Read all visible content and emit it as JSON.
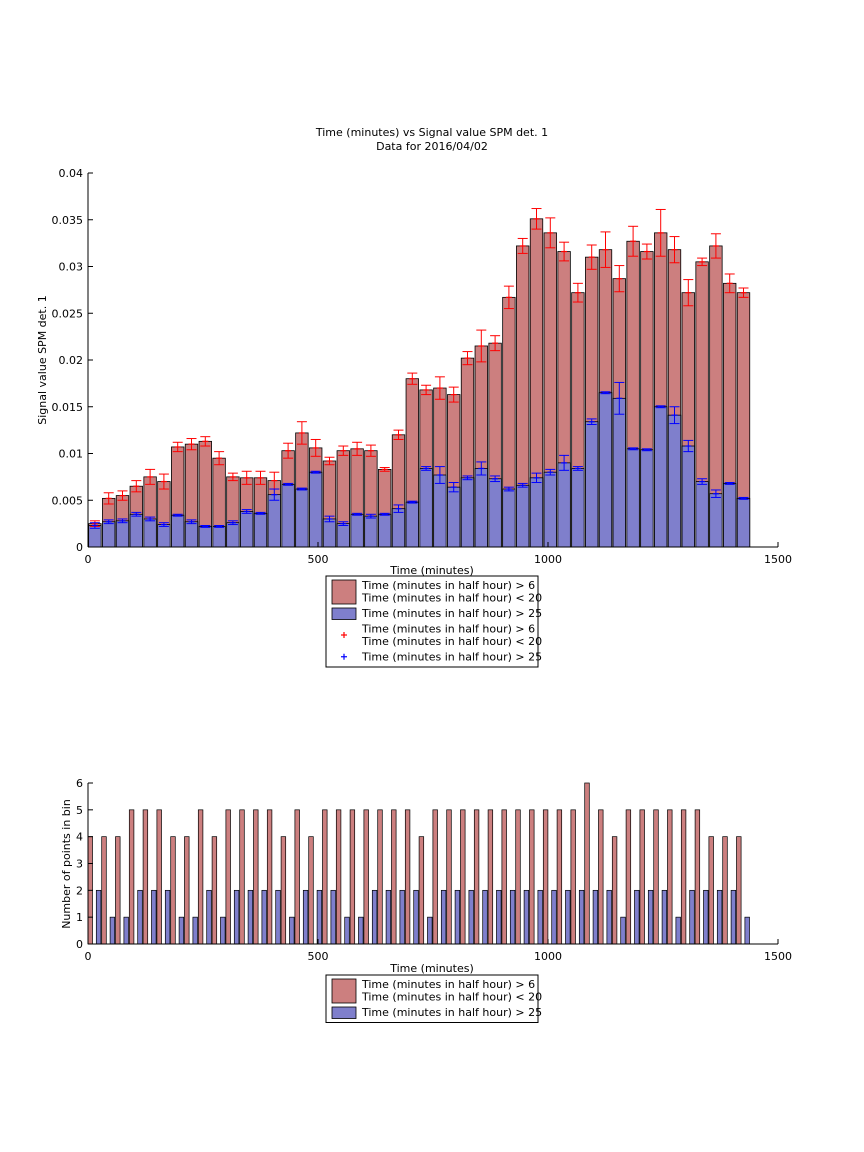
{
  "chart_data": [
    {
      "type": "bar",
      "title": "Time (minutes) vs Signal value SPM det. 1",
      "subtitle": "Data for 2016/04/02",
      "xlabel": "Time (minutes)",
      "ylabel": "Signal value SPM det. 1",
      "xlim": [
        0,
        1500
      ],
      "ylim": [
        0,
        0.04
      ],
      "xticks": [
        "0",
        "500",
        "1000",
        "1500"
      ],
      "yticks": [
        "0",
        "0.005",
        "0.01",
        "0.015",
        "0.02",
        "0.025",
        "0.03",
        "0.035",
        "0.04"
      ],
      "grid": false,
      "legend_position": "below",
      "x": [
        15,
        45,
        75,
        105,
        135,
        165,
        195,
        225,
        255,
        285,
        315,
        345,
        375,
        405,
        435,
        465,
        495,
        525,
        555,
        585,
        615,
        645,
        675,
        705,
        735,
        765,
        795,
        825,
        855,
        885,
        915,
        945,
        975,
        1005,
        1035,
        1065,
        1095,
        1125,
        1155,
        1185,
        1215,
        1245,
        1275,
        1305,
        1335,
        1365,
        1395,
        1425
      ],
      "series": [
        {
          "name": "Time (minutes in half hour) > 6\nTime (minutes in half hour) < 20",
          "color": "#cc7f7f",
          "values": [
            0.0025,
            0.0052,
            0.0055,
            0.0065,
            0.0075,
            0.007,
            0.0107,
            0.011,
            0.0113,
            0.0095,
            0.0075,
            0.0074,
            0.0074,
            0.0071,
            0.0103,
            0.0122,
            0.0106,
            0.0092,
            0.0103,
            0.0105,
            0.0103,
            0.0083,
            0.012,
            0.018,
            0.0168,
            0.017,
            0.0163,
            0.0202,
            0.0215,
            0.0218,
            0.0267,
            0.0322,
            0.0351,
            0.0336,
            0.0316,
            0.0272,
            0.031,
            0.0318,
            0.0287,
            0.0327,
            0.0316,
            0.0336,
            0.0318,
            0.0272,
            0.0305,
            0.0322,
            0.0282,
            0.0272
          ],
          "errors": [
            0.0003,
            0.0006,
            0.0005,
            0.0006,
            0.0008,
            0.0008,
            0.0005,
            0.0006,
            0.0005,
            0.0007,
            0.0004,
            0.0007,
            0.0007,
            0.0009,
            0.0008,
            0.0012,
            0.0009,
            0.0004,
            0.0005,
            0.0007,
            0.0006,
            0.0002,
            0.0005,
            0.0006,
            0.0005,
            0.0012,
            0.0008,
            0.0007,
            0.0017,
            0.0008,
            0.0012,
            0.0008,
            0.0011,
            0.0016,
            0.001,
            0.001,
            0.0013,
            0.0019,
            0.0014,
            0.0016,
            0.0008,
            0.0025,
            0.0014,
            0.0014,
            0.0004,
            0.0013,
            0.001,
            0.0005
          ]
        },
        {
          "name": "Time (minutes in half hour) > 25",
          "color": "#7f7fcc",
          "values": [
            0.0023,
            0.0027,
            0.0028,
            0.0035,
            0.003,
            0.0024,
            0.0034,
            0.0027,
            0.0022,
            0.0022,
            0.0026,
            0.0038,
            0.0036,
            0.0056,
            0.0067,
            0.0062,
            0.008,
            0.003,
            0.0025,
            0.0035,
            0.0033,
            0.0035,
            0.0041,
            0.0048,
            0.0084,
            0.0077,
            0.0064,
            0.0074,
            0.0084,
            0.0073,
            0.0062,
            0.0066,
            0.0074,
            0.008,
            0.009,
            0.0084,
            0.0134,
            0.0165,
            0.0159,
            0.0105,
            0.0104,
            0.015,
            0.0141,
            0.0108,
            0.007,
            0.0057,
            0.0068,
            0.0052
          ],
          "errors": [
            0.0003,
            0.0002,
            0.0002,
            0.0002,
            0.0002,
            0.0002,
            0.0001,
            0.0002,
            0.0001,
            0.0001,
            0.0002,
            0.0002,
            0.0001,
            0.0006,
            0.0001,
            0.0001,
            0.0001,
            0.0003,
            0.0002,
            0.0001,
            0.0002,
            0.0001,
            0.0004,
            0.0001,
            0.0002,
            0.0009,
            0.0005,
            0.0002,
            0.0007,
            0.0003,
            0.0002,
            0.0002,
            0.0005,
            0.0003,
            0.0008,
            0.0002,
            0.0003,
            0.0001,
            0.0017,
            0.0001,
            0.0001,
            0.0001,
            0.0009,
            0.0006,
            0.0003,
            0.0004,
            0.0001,
            0.0001
          ]
        }
      ],
      "legend": [
        {
          "kind": "patch",
          "color": "#cc7f7f",
          "lines": [
            "Time (minutes in half hour) > 6",
            "Time (minutes in half hour) < 20"
          ]
        },
        {
          "kind": "patch",
          "color": "#7f7fcc",
          "lines": [
            "Time (minutes in half hour) > 25"
          ]
        },
        {
          "kind": "marker",
          "color": "#ff0000",
          "lines": [
            "Time (minutes in half hour) > 6",
            "Time (minutes in half hour) < 20"
          ]
        },
        {
          "kind": "marker",
          "color": "#0000ff",
          "lines": [
            "Time (minutes in half hour) > 25"
          ]
        }
      ]
    },
    {
      "type": "bar",
      "xlabel": "Time (minutes)",
      "ylabel": "Number of points in bin",
      "xlim": [
        0,
        1500
      ],
      "ylim": [
        0,
        6
      ],
      "xticks": [
        "0",
        "500",
        "1000",
        "1500"
      ],
      "yticks": [
        "0",
        "1",
        "2",
        "3",
        "4",
        "5",
        "6"
      ],
      "grid": false,
      "legend_position": "below",
      "x": [
        15,
        45,
        75,
        105,
        135,
        165,
        195,
        225,
        255,
        285,
        315,
        345,
        375,
        405,
        435,
        465,
        495,
        525,
        555,
        585,
        615,
        645,
        675,
        705,
        735,
        765,
        795,
        825,
        855,
        885,
        915,
        945,
        975,
        1005,
        1035,
        1065,
        1095,
        1125,
        1155,
        1185,
        1215,
        1245,
        1275,
        1305,
        1335,
        1365,
        1395,
        1425
      ],
      "series": [
        {
          "name": "Time (minutes in half hour) > 6\nTime (minutes in half hour) < 20",
          "color": "#cc7f7f",
          "values": [
            4,
            4,
            4,
            5,
            5,
            5,
            4,
            4,
            5,
            4,
            5,
            5,
            5,
            5,
            4,
            5,
            4,
            5,
            5,
            5,
            5,
            5,
            5,
            5,
            4,
            5,
            5,
            5,
            5,
            5,
            5,
            5,
            5,
            5,
            5,
            5,
            6,
            5,
            4,
            5,
            5,
            5,
            5,
            5,
            5,
            4,
            4,
            4
          ]
        },
        {
          "name": "Time (minutes in half hour) > 25",
          "color": "#7f7fcc",
          "values": [
            2,
            1,
            1,
            2,
            2,
            2,
            1,
            1,
            2,
            1,
            2,
            2,
            2,
            2,
            1,
            2,
            2,
            2,
            1,
            1,
            2,
            2,
            2,
            2,
            1,
            2,
            2,
            2,
            2,
            2,
            2,
            2,
            2,
            2,
            2,
            2,
            2,
            2,
            1,
            2,
            2,
            2,
            1,
            2,
            2,
            2,
            2,
            1
          ]
        }
      ],
      "legend": [
        {
          "kind": "patch",
          "color": "#cc7f7f",
          "lines": [
            "Time (minutes in half hour) > 6",
            "Time (minutes in half hour) < 20"
          ]
        },
        {
          "kind": "patch",
          "color": "#7f7fcc",
          "lines": [
            "Time (minutes in half hour) > 25"
          ]
        }
      ]
    }
  ]
}
